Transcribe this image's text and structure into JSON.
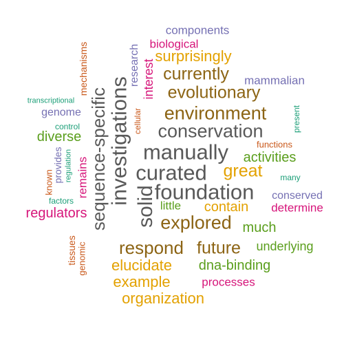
{
  "colors": {
    "gray": "#595959",
    "orange": "#E3A100",
    "brown": "#8C6414",
    "purple": "#7570B3",
    "pink": "#D6157A",
    "green": "#5A9E1C",
    "rust": "#C9581A",
    "teal": "#1B9E77"
  },
  "words": [
    {
      "id": "investigations",
      "text": "investigations",
      "color": "gray"
    },
    {
      "id": "sequence-specific",
      "text": "sequence-specific",
      "color": "gray"
    },
    {
      "id": "manually",
      "text": "manually",
      "color": "gray"
    },
    {
      "id": "curated",
      "text": "curated",
      "color": "gray"
    },
    {
      "id": "foundation",
      "text": "foundation",
      "color": "gray"
    },
    {
      "id": "conservation",
      "text": "conservation",
      "color": "gray"
    },
    {
      "id": "solid",
      "text": "solid",
      "color": "gray"
    },
    {
      "id": "environment",
      "text": "environment",
      "color": "brown"
    },
    {
      "id": "evolutionary",
      "text": "evolutionary",
      "color": "brown"
    },
    {
      "id": "currently",
      "text": "currently",
      "color": "brown"
    },
    {
      "id": "explored",
      "text": "explored",
      "color": "brown"
    },
    {
      "id": "respond",
      "text": "respond",
      "color": "brown"
    },
    {
      "id": "future",
      "text": "future",
      "color": "brown"
    },
    {
      "id": "surprisingly",
      "text": "surprisingly",
      "color": "orange"
    },
    {
      "id": "great",
      "text": "great",
      "color": "orange"
    },
    {
      "id": "contain",
      "text": "contain",
      "color": "orange"
    },
    {
      "id": "elucidate",
      "text": "elucidate",
      "color": "orange"
    },
    {
      "id": "example",
      "text": "example",
      "color": "orange"
    },
    {
      "id": "organization",
      "text": "organization",
      "color": "orange"
    },
    {
      "id": "activities",
      "text": "activities",
      "color": "green"
    },
    {
      "id": "much",
      "text": "much",
      "color": "green"
    },
    {
      "id": "little",
      "text": "little",
      "color": "green"
    },
    {
      "id": "underlying",
      "text": "underlying",
      "color": "green"
    },
    {
      "id": "dna-binding",
      "text": "dna-binding",
      "color": "green"
    },
    {
      "id": "diverse",
      "text": "diverse",
      "color": "green"
    },
    {
      "id": "regulators",
      "text": "regulators",
      "color": "pink"
    },
    {
      "id": "determine",
      "text": "determine",
      "color": "pink"
    },
    {
      "id": "processes",
      "text": "processes",
      "color": "pink"
    },
    {
      "id": "biological",
      "text": "biological",
      "color": "pink"
    },
    {
      "id": "interest",
      "text": "interest",
      "color": "pink"
    },
    {
      "id": "remains",
      "text": "remains",
      "color": "pink"
    },
    {
      "id": "components",
      "text": "components",
      "color": "purple"
    },
    {
      "id": "mammalian",
      "text": "mammalian",
      "color": "purple"
    },
    {
      "id": "genome",
      "text": "genome",
      "color": "purple"
    },
    {
      "id": "conserved",
      "text": "conserved",
      "color": "purple"
    },
    {
      "id": "provides",
      "text": "provides",
      "color": "purple"
    },
    {
      "id": "research",
      "text": "research",
      "color": "purple"
    },
    {
      "id": "mechanisms",
      "text": "mechanisms",
      "color": "rust"
    },
    {
      "id": "functions",
      "text": "functions",
      "color": "rust"
    },
    {
      "id": "known",
      "text": "known",
      "color": "rust"
    },
    {
      "id": "tissues",
      "text": "tissues",
      "color": "rust"
    },
    {
      "id": "genomic",
      "text": "genomic",
      "color": "rust"
    },
    {
      "id": "cellular",
      "text": "cellular",
      "color": "rust"
    },
    {
      "id": "transcriptional",
      "text": "transcriptional",
      "color": "teal"
    },
    {
      "id": "control",
      "text": "control",
      "color": "teal"
    },
    {
      "id": "regulation",
      "text": "regulation",
      "color": "teal"
    },
    {
      "id": "factors",
      "text": "factors",
      "color": "teal"
    },
    {
      "id": "present",
      "text": "present",
      "color": "teal"
    },
    {
      "id": "many",
      "text": "many",
      "color": "teal"
    }
  ]
}
